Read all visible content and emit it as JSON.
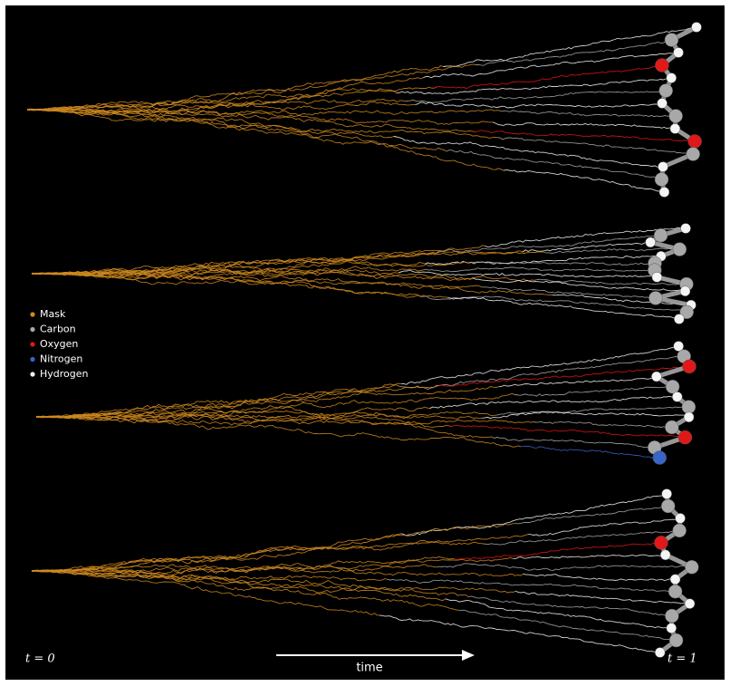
{
  "legend": [
    {
      "label": "Mask",
      "color": "#d08a1e"
    },
    {
      "label": "Carbon",
      "color": "#a8a8a8"
    },
    {
      "label": "Oxygen",
      "color": "#e01818"
    },
    {
      "label": "Nitrogen",
      "color": "#3a64c8"
    },
    {
      "label": "Hydrogen",
      "color": "#f4f4f4"
    }
  ],
  "timeline": {
    "start": "t = 0",
    "end": "t = 1",
    "label": "time"
  }
}
